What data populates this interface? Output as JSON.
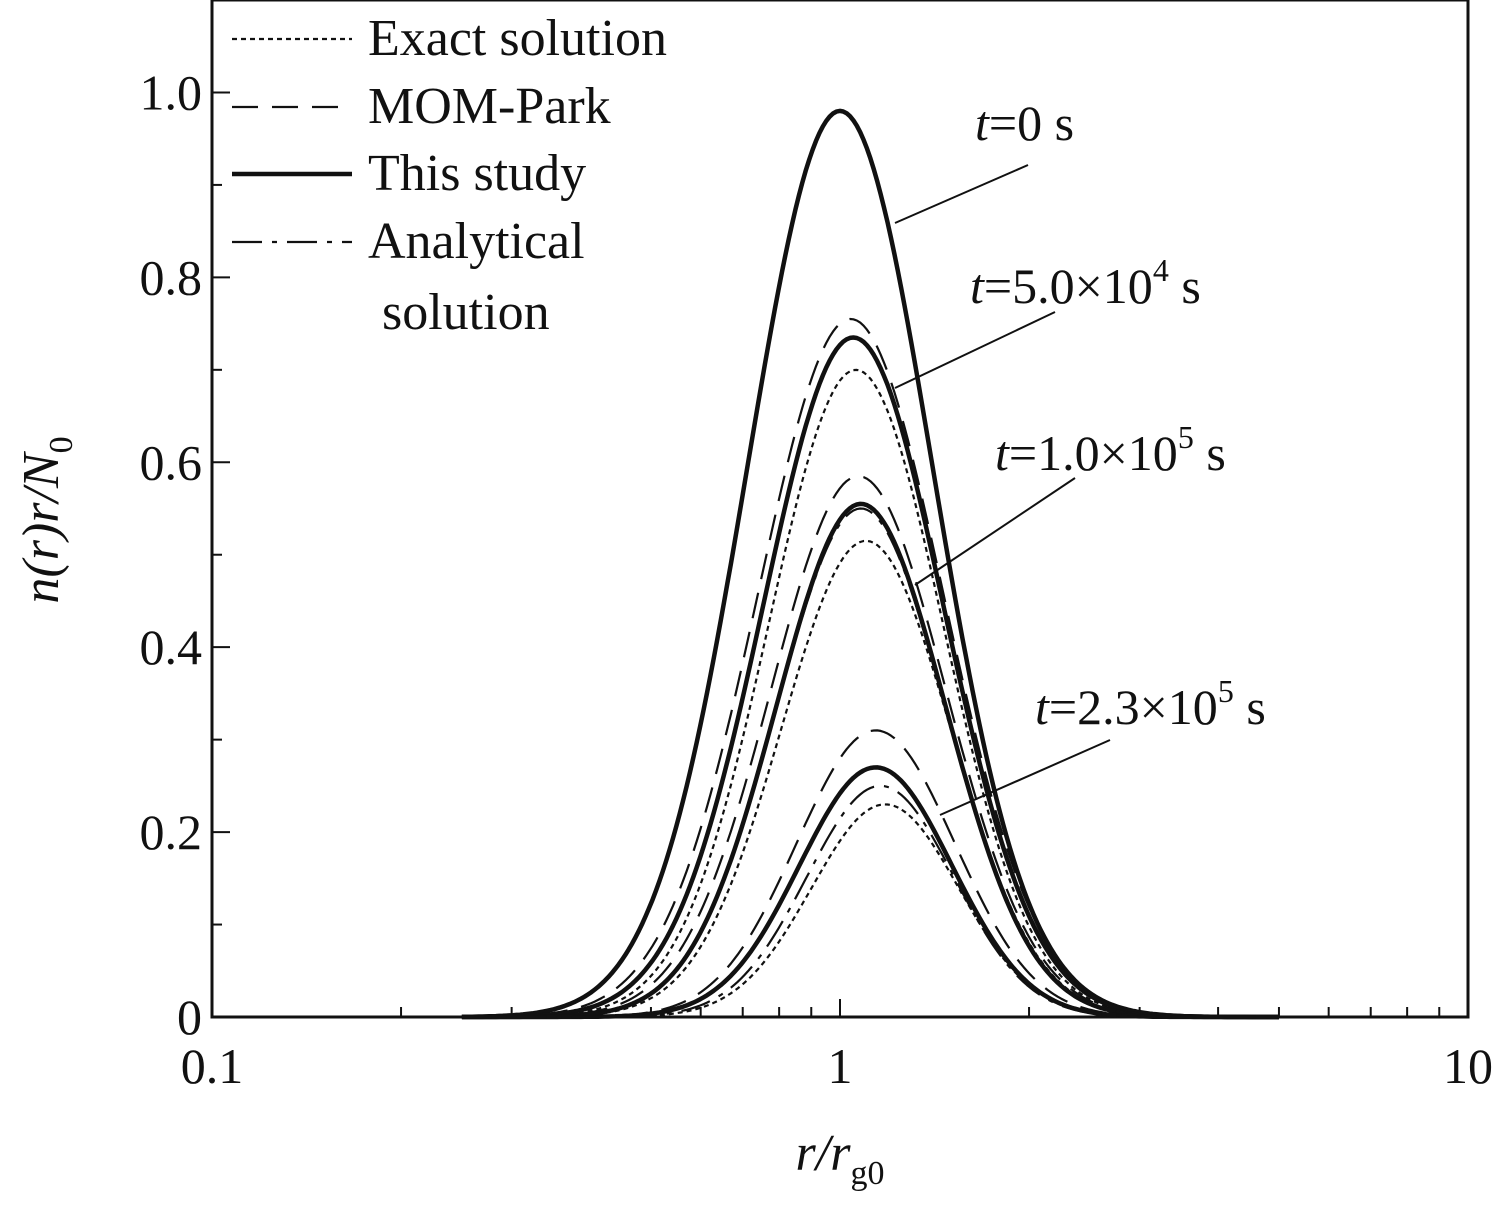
{
  "chart_data": {
    "type": "line",
    "xlabel": {
      "main": "r/r",
      "sub": "g0"
    },
    "ylabel": {
      "main": "n(r)r/N",
      "sub": "0"
    },
    "xscale": "log",
    "xlim": [
      0.1,
      10
    ],
    "ylim": [
      0,
      1.1
    ],
    "xticks": [
      {
        "value": 0.1,
        "label": "0.1"
      },
      {
        "value": 1,
        "label": "1"
      },
      {
        "value": 10,
        "label": "10"
      }
    ],
    "yticks": [
      {
        "value": 0,
        "label": "0"
      },
      {
        "value": 0.2,
        "label": "0.2"
      },
      {
        "value": 0.4,
        "label": "0.4"
      },
      {
        "value": 0.6,
        "label": "0.6"
      },
      {
        "value": 0.8,
        "label": "0.8"
      },
      {
        "value": 1.0,
        "label": "1.0"
      }
    ],
    "grid": false,
    "legend": {
      "position": "top-left",
      "entries": [
        {
          "label": "Exact solution",
          "style": "dotted"
        },
        {
          "label": "MOM-Park",
          "style": "dashed"
        },
        {
          "label": "This study",
          "style": "solid-thick"
        },
        {
          "label": "Analytical",
          "label2": "solution",
          "style": "dash-dot"
        }
      ]
    },
    "annotations": [
      {
        "prefix": "t",
        "text": "=0 s",
        "time": 0
      },
      {
        "prefix": "t",
        "text": "=5.0×10",
        "sup": "4",
        "suffix": " s",
        "time": 50000
      },
      {
        "prefix": "t",
        "text": "=1.0×10",
        "sup": "5",
        "suffix": " s",
        "time": 100000
      },
      {
        "prefix": "t",
        "text": "=2.3×10",
        "sup": "5",
        "suffix": " s",
        "time": 230000
      }
    ],
    "series": [
      {
        "method": "Exact solution",
        "time": 0,
        "style": "dotted",
        "peak_x": 1.0,
        "peak_y": 0.98,
        "sigma": 0.34
      },
      {
        "method": "MOM-Park",
        "time": 0,
        "style": "dashed",
        "peak_x": 1.0,
        "peak_y": 0.98,
        "sigma": 0.34
      },
      {
        "method": "This study",
        "time": 0,
        "style": "solid-thick",
        "peak_x": 1.0,
        "peak_y": 0.98,
        "sigma": 0.34
      },
      {
        "method": "Analytical solution",
        "time": 0,
        "style": "dash-dot",
        "peak_x": 1.0,
        "peak_y": 0.98,
        "sigma": 0.34
      },
      {
        "method": "Exact solution",
        "time": 50000,
        "style": "dotted",
        "peak_x": 1.06,
        "peak_y": 0.7,
        "sigma": 0.32
      },
      {
        "method": "MOM-Park",
        "time": 50000,
        "style": "dashed",
        "peak_x": 1.04,
        "peak_y": 0.755,
        "sigma": 0.34
      },
      {
        "method": "This study",
        "time": 50000,
        "style": "solid-thick",
        "peak_x": 1.05,
        "peak_y": 0.735,
        "sigma": 0.33
      },
      {
        "method": "Analytical solution",
        "time": 50000,
        "style": "dash-dot",
        "peak_x": 1.05,
        "peak_y": 0.735,
        "sigma": 0.33
      },
      {
        "method": "Exact solution",
        "time": 100000,
        "style": "dotted",
        "peak_x": 1.1,
        "peak_y": 0.515,
        "sigma": 0.31
      },
      {
        "method": "MOM-Park",
        "time": 100000,
        "style": "dashed",
        "peak_x": 1.07,
        "peak_y": 0.585,
        "sigma": 0.32
      },
      {
        "method": "This study",
        "time": 100000,
        "style": "solid-thick",
        "peak_x": 1.08,
        "peak_y": 0.555,
        "sigma": 0.31
      },
      {
        "method": "Analytical solution",
        "time": 100000,
        "style": "dash-dot",
        "peak_x": 1.08,
        "peak_y": 0.55,
        "sigma": 0.31
      },
      {
        "method": "Exact solution",
        "time": 230000,
        "style": "dotted",
        "peak_x": 1.18,
        "peak_y": 0.23,
        "sigma": 0.27
      },
      {
        "method": "MOM-Park",
        "time": 230000,
        "style": "dashed",
        "peak_x": 1.14,
        "peak_y": 0.31,
        "sigma": 0.29
      },
      {
        "method": "This study",
        "time": 230000,
        "style": "solid-thick",
        "peak_x": 1.14,
        "peak_y": 0.27,
        "sigma": 0.28
      },
      {
        "method": "Analytical solution",
        "time": 230000,
        "style": "dash-dot",
        "peak_x": 1.16,
        "peak_y": 0.25,
        "sigma": 0.27
      }
    ]
  }
}
